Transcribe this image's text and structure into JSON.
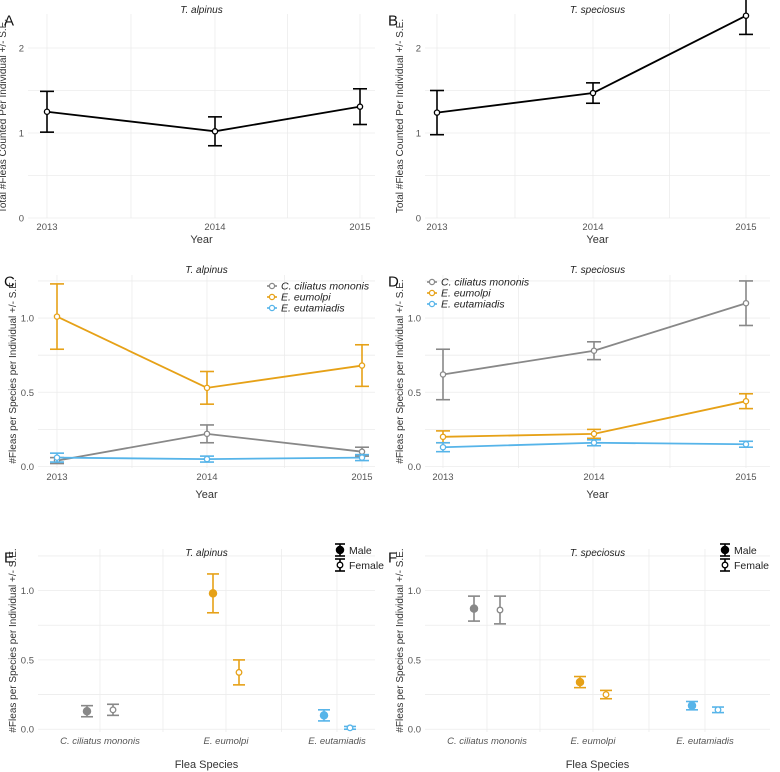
{
  "chart_data": [
    {
      "panel_label": "A",
      "type": "line",
      "title": "T. alpinus",
      "xlabel": "Year",
      "ylabel": "Total #Fleas Counted Per Individual +/- S.E.",
      "categories": [
        "2013",
        "2014",
        "2015"
      ],
      "yticks": [
        "0",
        "1",
        "2"
      ],
      "ylim": [
        0,
        2.4
      ],
      "series": [
        {
          "name": "Total",
          "color": "#000000",
          "values": [
            1.25,
            1.02,
            1.31
          ],
          "err": [
            0.24,
            0.17,
            0.21
          ]
        }
      ]
    },
    {
      "panel_label": "B",
      "type": "line",
      "title": "T. speciosus",
      "xlabel": "Year",
      "ylabel": "Total #Fleas Counted Per Individual +/- S.E.",
      "categories": [
        "2013",
        "2014",
        "2015"
      ],
      "yticks": [
        "0",
        "1",
        "2"
      ],
      "ylim": [
        0,
        2.4
      ],
      "series": [
        {
          "name": "Total",
          "color": "#000000",
          "values": [
            1.24,
            1.47,
            2.38
          ],
          "err": [
            0.26,
            0.12,
            0.22
          ]
        }
      ]
    },
    {
      "panel_label": "C",
      "type": "line",
      "title": "T. alpinus",
      "xlabel": "Year",
      "ylabel": "#Fleas per Species per Individual +/- S.E.",
      "categories": [
        "2013",
        "2014",
        "2015"
      ],
      "yticks": [
        "0.0",
        "0.5",
        "1.0"
      ],
      "ylim": [
        -0.01,
        1.29
      ],
      "legend": [
        {
          "label": "C. ciliatus mononis",
          "color": "#888888"
        },
        {
          "label": "E. eumolpi",
          "color": "#E6A117"
        },
        {
          "label": "E. eutamiadis",
          "color": "#56B4E9"
        }
      ],
      "series": [
        {
          "name": "C. ciliatus mononis",
          "color": "#888888",
          "values": [
            0.04,
            0.22,
            0.1
          ],
          "err": [
            0.02,
            0.06,
            0.03
          ]
        },
        {
          "name": "E. eumolpi",
          "color": "#E6A117",
          "values": [
            1.01,
            0.53,
            0.68
          ],
          "err": [
            0.22,
            0.11,
            0.14
          ]
        },
        {
          "name": "E. eutamiadis",
          "color": "#56B4E9",
          "values": [
            0.06,
            0.05,
            0.06
          ],
          "err": [
            0.03,
            0.02,
            0.02
          ]
        }
      ]
    },
    {
      "panel_label": "D",
      "type": "line",
      "title": "T. speciosus",
      "xlabel": "Year",
      "ylabel": "#Fleas per Species per Individual +/- S.E.",
      "categories": [
        "2013",
        "2014",
        "2015"
      ],
      "yticks": [
        "0.0",
        "0.5",
        "1.0"
      ],
      "ylim": [
        -0.01,
        1.29
      ],
      "legend": [
        {
          "label": "C. ciliatus mononis",
          "color": "#888888"
        },
        {
          "label": "E. eumolpi",
          "color": "#E6A117"
        },
        {
          "label": "E. eutamiadis",
          "color": "#56B4E9"
        }
      ],
      "series": [
        {
          "name": "C. ciliatus mononis",
          "color": "#888888",
          "values": [
            0.62,
            0.78,
            1.1
          ],
          "err": [
            0.17,
            0.06,
            0.15
          ]
        },
        {
          "name": "E. eumolpi",
          "color": "#E6A117",
          "values": [
            0.2,
            0.22,
            0.44
          ],
          "err": [
            0.04,
            0.03,
            0.05
          ]
        },
        {
          "name": "E. eutamiadis",
          "color": "#56B4E9",
          "values": [
            0.13,
            0.16,
            0.15
          ],
          "err": [
            0.03,
            0.02,
            0.02
          ]
        }
      ]
    },
    {
      "panel_label": "E",
      "type": "scatter",
      "title": "T. alpinus",
      "xlabel": "Flea Species",
      "ylabel": "#Fleas per Species per Individual +/- S.E.",
      "categories": [
        "C. ciliatus mononis",
        "E. eumolpi",
        "E. eutamiadis"
      ],
      "yticks": [
        "0.0",
        "0.5",
        "1.0"
      ],
      "ylim": [
        -0.02,
        1.3
      ],
      "legend": [
        {
          "label": "Male",
          "marker": "filled"
        },
        {
          "label": "Female",
          "marker": "open"
        }
      ],
      "colors": [
        "#888888",
        "#E6A117",
        "#56B4E9"
      ],
      "series": [
        {
          "name": "Male",
          "marker": "filled",
          "values": [
            0.13,
            0.98,
            0.1
          ],
          "err": [
            0.04,
            0.14,
            0.04
          ]
        },
        {
          "name": "Female",
          "marker": "open",
          "values": [
            0.14,
            0.41,
            0.01
          ],
          "err": [
            0.04,
            0.09,
            0.01
          ]
        }
      ]
    },
    {
      "panel_label": "F",
      "type": "scatter",
      "title": "T. speciosus",
      "xlabel": "Flea Species",
      "ylabel": "#Fleas per Species per Individual +/- S.E.",
      "categories": [
        "C. ciliatus mononis",
        "E. eumolpi",
        "E. eutamiadis"
      ],
      "yticks": [
        "0.0",
        "0.5",
        "1.0"
      ],
      "ylim": [
        -0.02,
        1.3
      ],
      "legend": [
        {
          "label": "Male",
          "marker": "filled"
        },
        {
          "label": "Female",
          "marker": "open"
        }
      ],
      "colors": [
        "#888888",
        "#E6A117",
        "#56B4E9"
      ],
      "series": [
        {
          "name": "Male",
          "marker": "filled",
          "values": [
            0.87,
            0.34,
            0.17
          ],
          "err": [
            0.09,
            0.04,
            0.03
          ]
        },
        {
          "name": "Female",
          "marker": "open",
          "values": [
            0.86,
            0.25,
            0.14
          ],
          "err": [
            0.1,
            0.03,
            0.02
          ]
        }
      ]
    }
  ]
}
